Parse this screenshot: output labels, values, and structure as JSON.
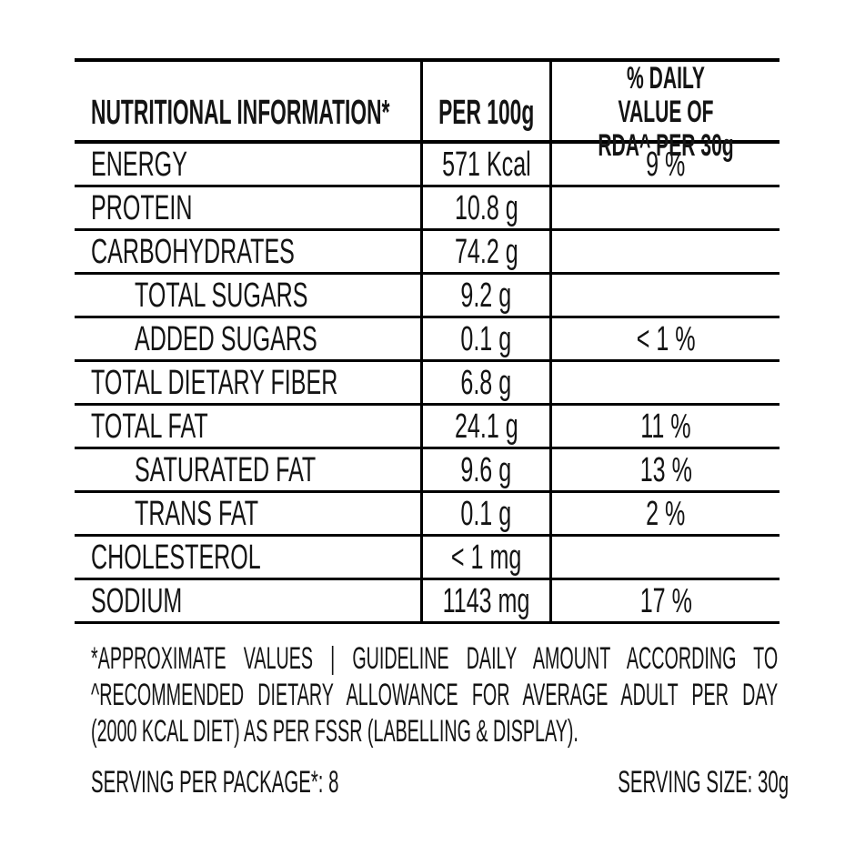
{
  "page": {
    "background": "#ffffff",
    "text_color": "#141414",
    "border_color": "#000000"
  },
  "table": {
    "header": {
      "col1": "NUTRITIONAL INFORMATION*",
      "col2": "PER 100g",
      "col3": "% DAILY VALUE OF RDA^ PER 30g"
    },
    "rows": [
      {
        "label": "ENERGY",
        "per100g": "571 Kcal",
        "daily_value": "9 %",
        "indent": false
      },
      {
        "label": "PROTEIN",
        "per100g": "10.8 g",
        "daily_value": "",
        "indent": false
      },
      {
        "label": "CARBOHYDRATES",
        "per100g": "74.2 g",
        "daily_value": "",
        "indent": false
      },
      {
        "label": "TOTAL SUGARS",
        "per100g": "9.2 g",
        "daily_value": "",
        "indent": true
      },
      {
        "label": "ADDED SUGARS",
        "per100g": "0.1 g",
        "daily_value": "< 1 %",
        "indent": true
      },
      {
        "label": "TOTAL DIETARY FIBER",
        "per100g": "6.8 g",
        "daily_value": "",
        "indent": false
      },
      {
        "label": "TOTAL FAT",
        "per100g": "24.1 g",
        "daily_value": "11 %",
        "indent": false
      },
      {
        "label": "SATURATED FAT",
        "per100g": "9.6 g",
        "daily_value": "13 %",
        "indent": true
      },
      {
        "label": "TRANS FAT",
        "per100g": "0.1 g",
        "daily_value": "2 %",
        "indent": true
      },
      {
        "label": "CHOLESTEROL",
        "per100g": "< 1 mg",
        "daily_value": "",
        "indent": false
      },
      {
        "label": "SODIUM",
        "per100g": "1143 mg",
        "daily_value": "17 %",
        "indent": false
      }
    ]
  },
  "footnote": {
    "line1": "*APPROXIMATE VALUES | GUIDELINE DAILY AMOUNT ACCORDING TO",
    "line2": "^RECOMMENDED DIETARY ALLOWANCE FOR AVERAGE ADULT PER DAY",
    "line3": "(2000 KCAL DIET) AS PER FSSR (LABELLING & DISPLAY)."
  },
  "serving": {
    "per_package": "SERVING PER PACKAGE*: 8",
    "size": "SERVING SIZE: 30g"
  }
}
